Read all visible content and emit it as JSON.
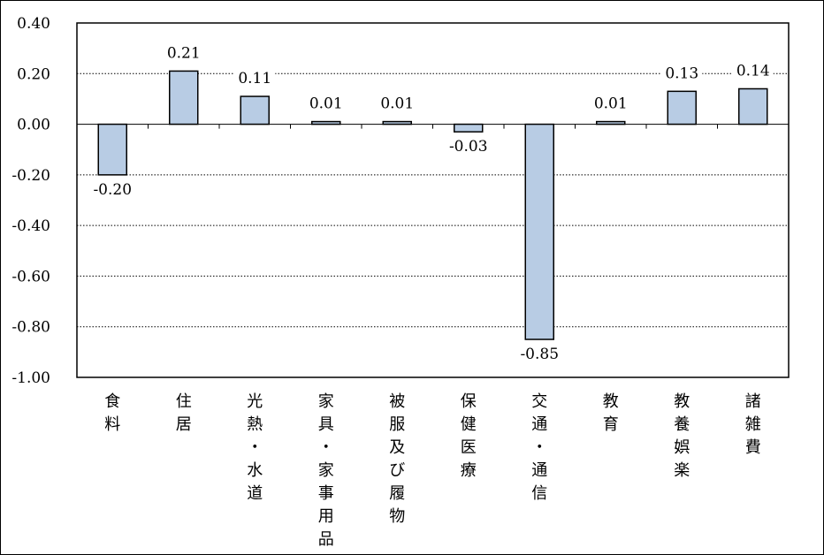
{
  "chart_data": {
    "type": "bar",
    "categories": [
      "食料",
      "住居",
      "光熱・水道",
      "家具・家事用品",
      "被服及び履物",
      "保健医療",
      "交通・通信",
      "教育",
      "教養娯楽",
      "諸雑費"
    ],
    "values": [
      -0.2,
      0.21,
      0.11,
      0.01,
      0.01,
      -0.03,
      -0.85,
      0.01,
      0.13,
      0.14
    ],
    "value_labels": [
      "-0.20",
      "0.21",
      "0.11",
      "0.01",
      "0.01",
      "-0.03",
      "-0.85",
      "0.01",
      "0.13",
      "0.14"
    ],
    "y_ticks": [
      0.4,
      0.2,
      0.0,
      -0.2,
      -0.4,
      -0.6,
      -0.8,
      -1.0
    ],
    "y_tick_labels": [
      "0.40",
      "0.20",
      "0.00",
      "-0.20",
      "-0.40",
      "-0.60",
      "-0.80",
      "-1.00"
    ],
    "ylim": [
      -1.0,
      0.4
    ],
    "grid": "horizontal-dotted",
    "legend": "none",
    "colors": {
      "bar_fill": "#b8cce4",
      "bar_stroke": "#000000",
      "grid": "#000000",
      "frame": "#000000"
    }
  }
}
